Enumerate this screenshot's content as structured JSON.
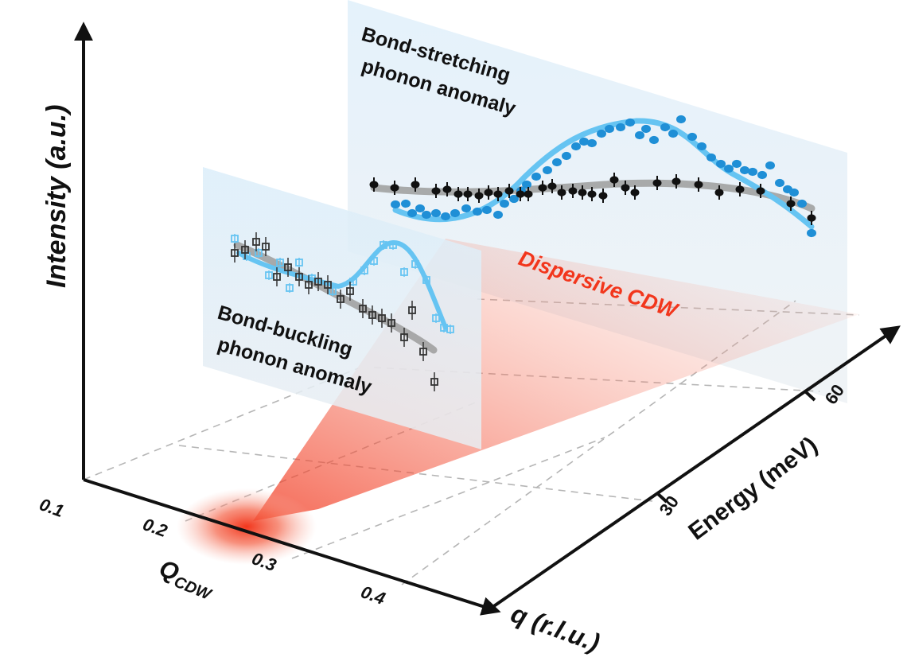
{
  "axes": {
    "intensity_label": "Intensity (a.u.)",
    "q_label": "q (r.l.u.)",
    "energy_label": "Energy (meV)",
    "q_ticks": [
      "0.1",
      "0.2",
      "0.3",
      "0.4"
    ],
    "energy_ticks": [
      "30",
      "60"
    ],
    "qcdw_main": "Q",
    "qcdw_sub": "CDW"
  },
  "annotations": {
    "stretch_line1": "Bond-stretching",
    "stretch_line2": "phonon anomaly",
    "buckle_line1": "Bond-buckling",
    "buckle_line2": "phonon anomaly",
    "cdw": "Dispersive CDW"
  },
  "colors": {
    "axis": "#111111",
    "panel": "#e6f1fa",
    "cdw": "#f2361c",
    "blue": "#1f8fd6",
    "light_blue": "#66c4f2",
    "black": "#111111",
    "gray_fit": "#9c9c9c"
  }
}
